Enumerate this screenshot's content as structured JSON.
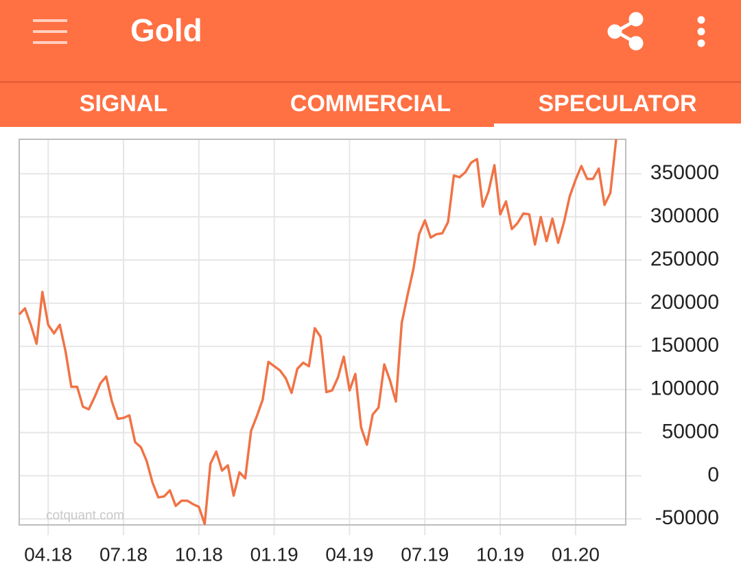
{
  "app_bar": {
    "title": "Gold"
  },
  "tabs": [
    "SIGNAL",
    "COMMERCIAL",
    "SPECULATOR"
  ],
  "chart_data": {
    "type": "line",
    "color": "#f07346",
    "watermark": "cotquant.com",
    "categories": [
      null,
      null,
      null,
      null,
      null,
      "04.18",
      null,
      null,
      null,
      null,
      null,
      null,
      null,
      null,
      null,
      null,
      null,
      null,
      "07.18",
      null,
      null,
      null,
      null,
      null,
      null,
      null,
      null,
      null,
      null,
      null,
      null,
      "10.18",
      null,
      null,
      null,
      null,
      null,
      null,
      null,
      null,
      null,
      null,
      null,
      null,
      "01.19",
      null,
      null,
      null,
      null,
      null,
      null,
      null,
      null,
      null,
      null,
      null,
      null,
      "04.19",
      null,
      null,
      null,
      null,
      null,
      null,
      null,
      null,
      null,
      null,
      null,
      null,
      "07.19",
      null,
      null,
      null,
      null,
      null,
      null,
      null,
      null,
      null,
      null,
      null,
      null,
      "10.19",
      null,
      null,
      null,
      null,
      null,
      null,
      null,
      null,
      null,
      null,
      null,
      null,
      "01.20",
      null,
      null,
      null,
      null,
      null,
      null,
      null
    ],
    "values": [
      187000,
      194000,
      175000,
      153000,
      213000,
      175000,
      165000,
      175000,
      144000,
      103000,
      103000,
      80000,
      77000,
      91000,
      107000,
      115000,
      86000,
      66000,
      67000,
      70000,
      39000,
      33000,
      17000,
      -8000,
      -25000,
      -24000,
      -17000,
      -35000,
      -29000,
      -29000,
      -33000,
      -36000,
      -56000,
      14000,
      28000,
      6000,
      12000,
      -23000,
      4000,
      -3000,
      52000,
      69000,
      88000,
      132000,
      127000,
      122000,
      113000,
      96000,
      124000,
      131000,
      127000,
      171000,
      161000,
      97000,
      99000,
      114000,
      138000,
      99000,
      118000,
      56000,
      36000,
      71000,
      79000,
      129000,
      110000,
      86000,
      177000,
      209000,
      239000,
      280000,
      296000,
      276000,
      280000,
      281000,
      294000,
      348000,
      346000,
      352000,
      363000,
      367000,
      312000,
      330000,
      360000,
      303000,
      318000,
      286000,
      293000,
      304000,
      303000,
      268000,
      300000,
      272000,
      298000,
      270000,
      294000,
      324000,
      343000,
      359000,
      344000,
      344000,
      356000,
      314000,
      328000,
      390000
    ],
    "ylim": [
      -57000,
      390000
    ],
    "yticks": [
      -50000,
      0,
      50000,
      100000,
      150000,
      200000,
      250000,
      300000,
      350000
    ],
    "grid": true
  }
}
